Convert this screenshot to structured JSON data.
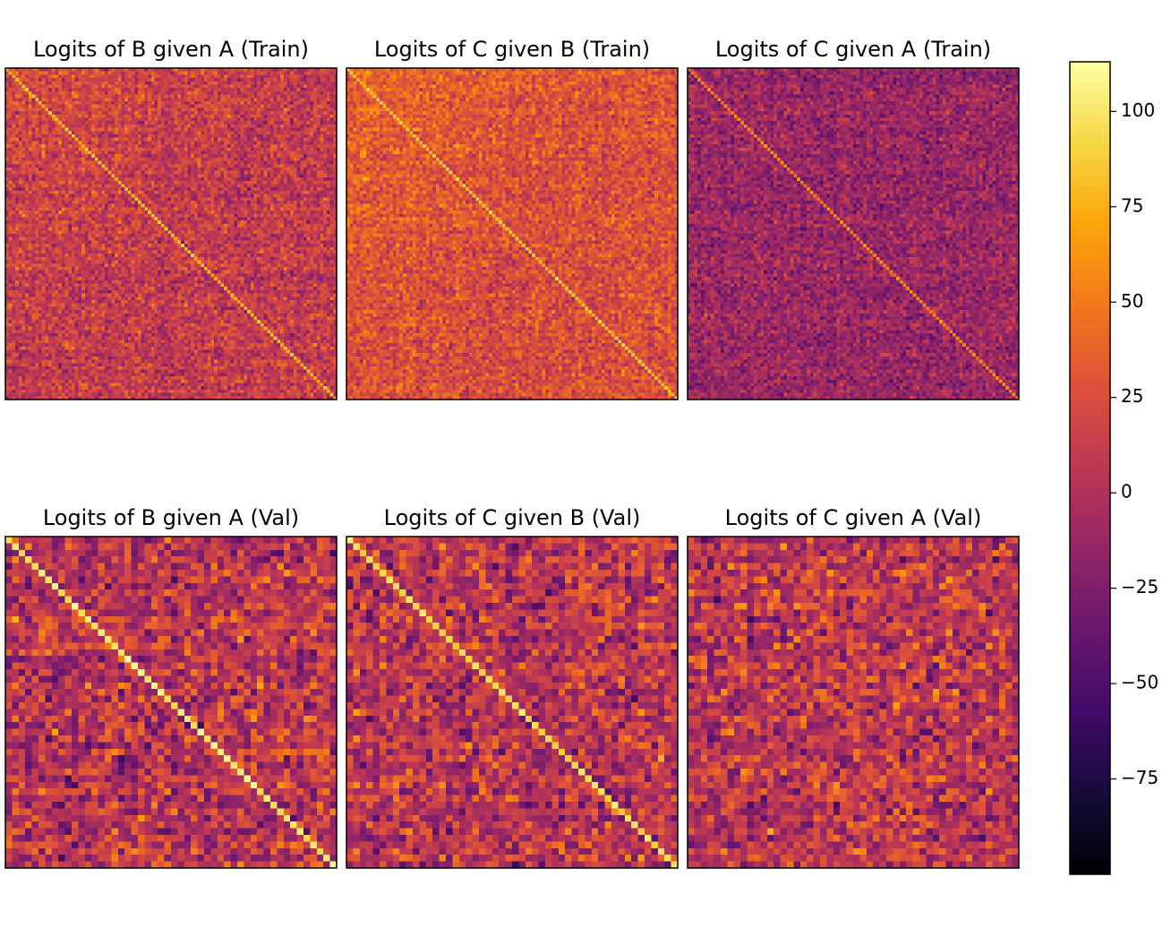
{
  "chart_data": [
    {
      "type": "heatmap",
      "title": "Logits of B given A (Train)",
      "rows": 100,
      "cols": 100,
      "diagonal": "strong",
      "background_mean": 10,
      "background_spread": 30,
      "diagonal_value": 80
    },
    {
      "type": "heatmap",
      "title": "Logits of C given B (Train)",
      "rows": 100,
      "cols": 100,
      "diagonal": "strong",
      "background_mean": 25,
      "background_spread": 28,
      "diagonal_value": 85
    },
    {
      "type": "heatmap",
      "title": "Logits of C given A (Train)",
      "rows": 100,
      "cols": 100,
      "diagonal": "moderate",
      "background_mean": -12,
      "background_spread": 28,
      "diagonal_value": 55
    },
    {
      "type": "heatmap",
      "title": "Logits of B given A (Val)",
      "rows": 50,
      "cols": 50,
      "diagonal": "strong",
      "background_mean": 5,
      "background_spread": 45,
      "diagonal_value": 100
    },
    {
      "type": "heatmap",
      "title": "Logits of C given B (Val)",
      "rows": 50,
      "cols": 50,
      "diagonal": "strong",
      "background_mean": 5,
      "background_spread": 45,
      "diagonal_value": 95
    },
    {
      "type": "heatmap",
      "title": "Logits of C given A (Val)",
      "rows": 50,
      "cols": 50,
      "diagonal": "none",
      "background_mean": 5,
      "background_spread": 45,
      "diagonal_value": 5
    }
  ],
  "colorbar": {
    "colormap": "inferno",
    "min": -100,
    "max": 113,
    "ticks": [
      100,
      75,
      50,
      25,
      0,
      -25,
      -50,
      -75
    ],
    "tick_labels": [
      "100",
      "75",
      "50",
      "25",
      "0",
      "−25",
      "−50",
      "−75"
    ]
  }
}
